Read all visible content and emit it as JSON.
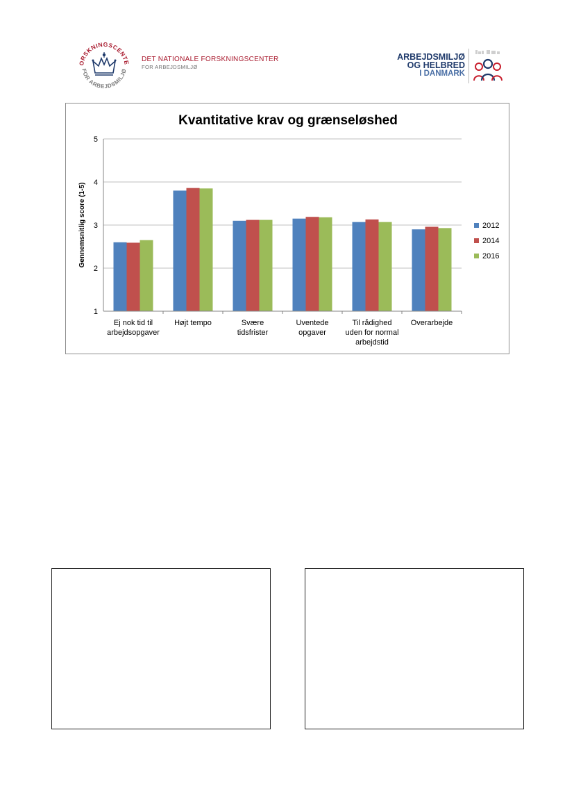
{
  "header": {
    "left_logo": {
      "seal_text": "FORSKNINGSCENTER FOR ARBEJDSMILJØ",
      "line1": "DET NATIONALE FORSKNINGSCENTER",
      "line2": "FOR ARBEJDSMILJØ",
      "color": "#a8182c"
    },
    "right_logo": {
      "line1": "ARBEJDSMILJØ",
      "line2": "OG HELBRED",
      "line3": "I DANMARK",
      "color": "#1f3a6b",
      "icon": "people-icon"
    }
  },
  "chart_data": {
    "type": "bar",
    "title": "Kvantitative krav og grænseløshed",
    "xlabel": "",
    "ylabel": "Gennemsnitlig score (1-5)",
    "ylim": [
      1,
      5
    ],
    "yticks": [
      "1",
      "2",
      "3",
      "4",
      "5"
    ],
    "grid": true,
    "legend_position": "right",
    "categories": [
      [
        "Ej nok tid til",
        "arbejdsopgaver"
      ],
      [
        "Højt tempo"
      ],
      [
        "Svære",
        "tidsfrister"
      ],
      [
        "Uventede",
        "opgaver"
      ],
      [
        "Til rådighed",
        "uden for normal",
        "arbejdstid"
      ],
      [
        "Overarbejde"
      ]
    ],
    "series": [
      {
        "name": "2012",
        "color": "#4f81bd",
        "values": [
          2.6,
          3.8,
          3.1,
          3.15,
          3.07,
          2.9
        ]
      },
      {
        "name": "2014",
        "color": "#c0504d",
        "values": [
          2.59,
          3.86,
          3.12,
          3.19,
          3.13,
          2.96
        ]
      },
      {
        "name": "2016",
        "color": "#9bbb59",
        "values": [
          2.65,
          3.85,
          3.12,
          3.18,
          3.07,
          2.93
        ]
      }
    ]
  }
}
